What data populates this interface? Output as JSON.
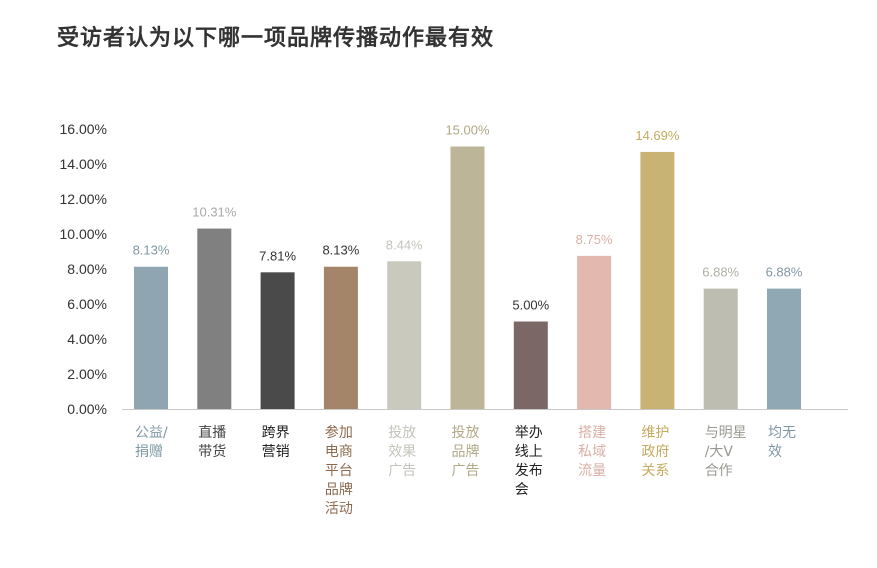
{
  "chart_data": {
    "type": "bar",
    "title": "受访者认为以下哪一项品牌传播动作最有效",
    "categories": [
      [
        "公益/",
        "捐赠"
      ],
      [
        "直播",
        "带货"
      ],
      [
        "跨界",
        "营销"
      ],
      [
        "参加",
        "电商",
        "平台",
        "品牌",
        "活动"
      ],
      [
        "投放",
        "效果",
        "广告"
      ],
      [
        "投放",
        "品牌",
        "广告"
      ],
      [
        "举办",
        "线上",
        "发布",
        "会"
      ],
      [
        "搭建",
        "私域",
        "流量"
      ],
      [
        "维护",
        "政府",
        "关系"
      ],
      [
        "与明星",
        "/大V",
        "合作"
      ],
      [
        "均无",
        "效"
      ]
    ],
    "values": [
      8.13,
      10.31,
      7.81,
      8.13,
      8.44,
      15.0,
      5.0,
      8.75,
      14.69,
      6.88,
      6.88
    ],
    "value_labels": [
      "8.13%",
      "10.31%",
      "7.81%",
      "8.13%",
      "8.44%",
      "15.00%",
      "5.00%",
      "8.75%",
      "14.69%",
      "6.88%",
      "6.88%"
    ],
    "colors": [
      "#8fa6b2",
      "#808080",
      "#4a4a4a",
      "#a58569",
      "#c9c9bd",
      "#bdb597",
      "#7c6767",
      "#e3b8ae",
      "#c9b374",
      "#bdbdb1",
      "#8fa8b3"
    ],
    "label_colors": [
      "#7f98a5",
      "#aaaaaa",
      "#333333",
      "#333333",
      "#c4c4bc",
      "#b0a887",
      "#333333",
      "#d8b0a5",
      "#c4ab60",
      "#b0b0a4",
      "#7f98a5"
    ],
    "category_colors": [
      "#7f98a5",
      "#444444",
      "#222222",
      "#8c6a4f",
      "#c4c4bc",
      "#b0a887",
      "#222222",
      "#d8b0a5",
      "#c4ab60",
      "#999990",
      "#7f98a5"
    ],
    "yticks": [
      "0.00%",
      "2.00%",
      "4.00%",
      "6.00%",
      "8.00%",
      "10.00%",
      "12.00%",
      "14.00%",
      "16.00%"
    ],
    "ylim": [
      0,
      16
    ],
    "grid": false,
    "legend": "none"
  }
}
